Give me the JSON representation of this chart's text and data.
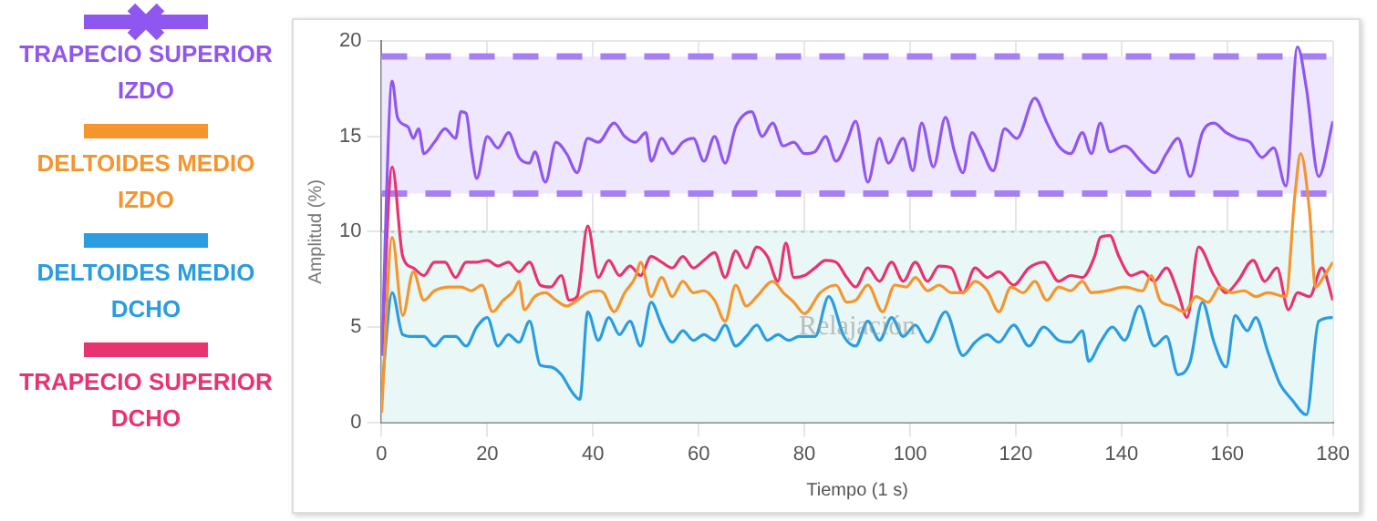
{
  "chart_data": {
    "type": "line",
    "xlabel": "Tiempo (1 s)",
    "ylabel": "Amplitud (%)",
    "xlim": [
      0,
      180
    ],
    "xticks": [
      0,
      20,
      40,
      60,
      80,
      100,
      120,
      140,
      160,
      180
    ],
    "ylim": [
      0,
      20
    ],
    "yticks": [
      0,
      5,
      10,
      15,
      20
    ],
    "grid": true,
    "legend": "left",
    "marker": "none",
    "line_style": "solid",
    "bands": [
      {
        "axis": "y",
        "from": 12,
        "to": 19.2,
        "color": "#efe7fd"
      },
      {
        "axis": "y",
        "from": 0,
        "to": 10,
        "label": "Relajación",
        "color": "#e9f7f7"
      }
    ],
    "ref_lines": [
      {
        "axis": "y",
        "value": 12,
        "color": "#a77ff5",
        "line_style": "dashed"
      },
      {
        "axis": "y",
        "value": 19.2,
        "color": "#a77ff5",
        "line_style": "dashed"
      },
      {
        "axis": "y",
        "value": 10,
        "color": "#8fd3d0",
        "line_style": "dotted"
      }
    ],
    "series": [
      {
        "name": "TRAPECIO SUPERIOR IZDO",
        "color": "#9057f0",
        "x": [
          0,
          2,
          3,
          5,
          6,
          7,
          8,
          10,
          12,
          14,
          15,
          16,
          17,
          18,
          20,
          22,
          24,
          26,
          28,
          29,
          31,
          33,
          35,
          37,
          39,
          41,
          44,
          46,
          48,
          50,
          51,
          53,
          55,
          57,
          59,
          61,
          63,
          65,
          67,
          70,
          72,
          74,
          76,
          78,
          80,
          82,
          84,
          86,
          88,
          89.7,
          92,
          94.2,
          95.9,
          98.7,
          100.5,
          102.2,
          104.4,
          106.7,
          108.4,
          110,
          111.7,
          113.4,
          115.7,
          117.9,
          120.2,
          123.6,
          125.9,
          128.1,
          130.4,
          132.6,
          134.3,
          136,
          137.8,
          140.6,
          144,
          146.2,
          148.5,
          150.7,
          153,
          155.3,
          157.5,
          159.8,
          162,
          164.3,
          166.6,
          168.8,
          171.1,
          173.3,
          175,
          177.3,
          180
        ],
        "values": [
          3.5,
          17.9,
          16,
          15.5,
          14.9,
          15.4,
          14.1,
          14.7,
          15.4,
          14.9,
          16.3,
          16.2,
          14.2,
          12.8,
          15,
          14.4,
          15.2,
          13.9,
          13.6,
          14.2,
          12.6,
          14.7,
          14.1,
          13.1,
          14.9,
          14.7,
          15.7,
          15,
          14.7,
          15.2,
          13.7,
          14.9,
          14.1,
          14.7,
          14.9,
          13.7,
          15,
          13.6,
          15.5,
          16.3,
          15,
          15.7,
          14.5,
          14.7,
          14.1,
          14.2,
          15,
          13.7,
          14.7,
          15.8,
          12.6,
          14.9,
          13.6,
          14.9,
          13.2,
          15.7,
          13.4,
          16,
          14.2,
          13.1,
          15.2,
          14.4,
          13.2,
          15.4,
          14.9,
          17,
          15.7,
          14.5,
          14.1,
          15.2,
          14.1,
          15.7,
          14.2,
          14.5,
          13.6,
          13.1,
          14.1,
          14.9,
          12.9,
          15.2,
          15.7,
          15.2,
          14.9,
          14.7,
          13.9,
          14.4,
          12.4,
          19.7,
          17.5,
          12.9,
          15.8
        ]
      },
      {
        "name": "DELTOIDES MEDIO IZDO",
        "color": "#f5952e",
        "x": [
          0,
          2,
          4,
          6,
          8,
          10,
          13,
          15,
          17,
          19,
          21,
          23,
          25,
          26,
          27,
          29,
          31,
          33,
          35,
          37,
          39,
          41,
          42,
          44,
          46,
          48,
          49,
          51,
          53,
          55,
          57,
          59,
          61,
          63,
          65,
          67,
          69,
          71,
          74,
          76,
          78,
          80,
          83,
          86,
          88,
          89.7,
          92,
          94.8,
          97.1,
          99.3,
          101,
          103.3,
          105.5,
          107.8,
          110,
          112.3,
          114.6,
          116.8,
          119.1,
          121.4,
          123.6,
          125.9,
          128.1,
          130.4,
          132.6,
          134.3,
          137.2,
          140.6,
          144,
          145.6,
          147.3,
          149.6,
          151.9,
          154.1,
          156.4,
          158.6,
          160.9,
          163.2,
          165.4,
          167.7,
          171.1,
          172.8,
          173.9,
          175.6,
          176.7,
          178.4,
          180
        ],
        "values": [
          0.5,
          9.7,
          5.6,
          7.9,
          6.4,
          6.9,
          7.1,
          7.1,
          6.9,
          7.2,
          5.8,
          6.4,
          6.9,
          7.4,
          5.9,
          6.6,
          6.8,
          6.4,
          6.1,
          6.4,
          6.8,
          6.9,
          6.8,
          5.8,
          6.8,
          7.6,
          8.4,
          6.6,
          7.6,
          6.6,
          7.4,
          6.8,
          6.9,
          6.4,
          5.3,
          7.2,
          6.1,
          6.6,
          7.4,
          6.8,
          6.3,
          5.7,
          6.8,
          7.2,
          6.3,
          6.4,
          7.2,
          5.8,
          7.2,
          7.1,
          7.6,
          6.9,
          7.2,
          6.8,
          6.8,
          7.4,
          6.9,
          5.8,
          7.1,
          6.8,
          7.4,
          6.4,
          7.1,
          6.9,
          7.4,
          6.8,
          6.9,
          7.1,
          6.9,
          7.7,
          6.4,
          6.1,
          5.8,
          6.6,
          6.3,
          7.1,
          6.8,
          6.9,
          6.6,
          6.8,
          6.6,
          11.9,
          14.1,
          11,
          7.1,
          7.7,
          8.4
        ]
      },
      {
        "name": "DELTOIDES MEDIO DCHO",
        "color": "#2a9de0",
        "x": [
          0,
          2,
          4,
          6,
          8,
          10,
          12,
          14,
          16,
          18,
          20,
          22,
          24,
          26,
          28,
          30,
          32,
          34,
          36,
          37.5,
          39,
          41,
          43,
          45,
          47,
          49,
          51,
          53,
          55,
          57,
          59,
          61,
          63,
          65,
          67,
          69,
          71,
          73,
          75,
          77,
          79,
          82,
          84.6,
          87.5,
          89.7,
          92,
          94.2,
          96.5,
          98.7,
          101,
          103.3,
          106.7,
          110,
          112.3,
          114.6,
          116.8,
          119.6,
          122.5,
          125.3,
          128.1,
          130.4,
          132.6,
          133.8,
          136,
          138.3,
          140.6,
          143.4,
          146.2,
          148.5,
          150.7,
          153,
          155.3,
          157.5,
          159.8,
          161.5,
          163.8,
          165.4,
          167.7,
          170,
          172.2,
          175,
          177.3,
          180
        ],
        "values": [
          1.6,
          6.8,
          4.6,
          4.5,
          4.5,
          4,
          4.5,
          4.5,
          4,
          5,
          5.5,
          4,
          4.6,
          4.2,
          5.3,
          3,
          2.9,
          2.5,
          1.6,
          1.2,
          5.8,
          4.3,
          5.5,
          4.6,
          5.3,
          4,
          6.3,
          5.1,
          4.2,
          4.8,
          4.3,
          4.6,
          4.3,
          5.1,
          4,
          4.5,
          5.1,
          4.3,
          4.6,
          4.3,
          4.5,
          4.5,
          6.6,
          4.5,
          4,
          5.3,
          4.3,
          5.5,
          4.5,
          5.1,
          4.2,
          5.8,
          3.5,
          4.2,
          4.6,
          4.2,
          5.1,
          4,
          5,
          4.3,
          4.2,
          4.8,
          3.2,
          4.2,
          5,
          4.3,
          6.1,
          4,
          4.5,
          2.5,
          3.2,
          6.3,
          4.2,
          2.9,
          5.6,
          4.8,
          5.5,
          3.7,
          2,
          1.2,
          0.4,
          5.3,
          5.5
        ]
      },
      {
        "name": "TRAPECIO SUPERIOR DCHO",
        "color": "#e8336e",
        "x": [
          0,
          2,
          4,
          6,
          8,
          10,
          12,
          14,
          16,
          18,
          20,
          22,
          24,
          26,
          28,
          30,
          32,
          34,
          35.5,
          37,
          39,
          41,
          43,
          45,
          47,
          49,
          51,
          53,
          55,
          57,
          59,
          61,
          63,
          65,
          67,
          69,
          71,
          73,
          75,
          76.5,
          78,
          80,
          82,
          84,
          86,
          88,
          89.7,
          92,
          94.2,
          96.5,
          98.7,
          101,
          103.3,
          105.5,
          107.8,
          110,
          112.3,
          114.6,
          116.8,
          119.6,
          122.5,
          125.3,
          128.1,
          130.4,
          132.6,
          134.9,
          136,
          137.8,
          139.5,
          141.8,
          144,
          146.2,
          148.5,
          150.7,
          152.4,
          154.6,
          157.5,
          159.8,
          162,
          164.9,
          167.1,
          169.4,
          171.6,
          173.3,
          175.6,
          177.9,
          180
        ],
        "values": [
          3.5,
          13.4,
          8.7,
          8.1,
          7.7,
          8.4,
          8.4,
          7.6,
          8.4,
          8.4,
          8.5,
          8.2,
          8.4,
          7.9,
          8.4,
          7.2,
          7.1,
          7.7,
          6.4,
          6.6,
          10.3,
          7.6,
          8.5,
          7.7,
          8.2,
          7.7,
          8.7,
          8.4,
          8.1,
          8.7,
          8.1,
          8.5,
          8.9,
          7.6,
          9,
          8.1,
          9.2,
          8.7,
          7.4,
          9.4,
          7.6,
          7.7,
          8.1,
          8.5,
          8.4,
          7.6,
          7.1,
          8.1,
          7.4,
          8.4,
          7.4,
          8.4,
          7.4,
          8.2,
          8.1,
          6.8,
          8.1,
          7.6,
          7.9,
          7.2,
          8.1,
          8.4,
          7.4,
          7.7,
          7.6,
          8.7,
          9.7,
          9.8,
          8.7,
          7.7,
          7.9,
          7.4,
          8.1,
          6.8,
          5.5,
          9.2,
          7.7,
          6.8,
          7.4,
          8.5,
          7.4,
          8.1,
          5.9,
          6.8,
          6.6,
          8.1,
          6.4
        ]
      }
    ]
  }
}
